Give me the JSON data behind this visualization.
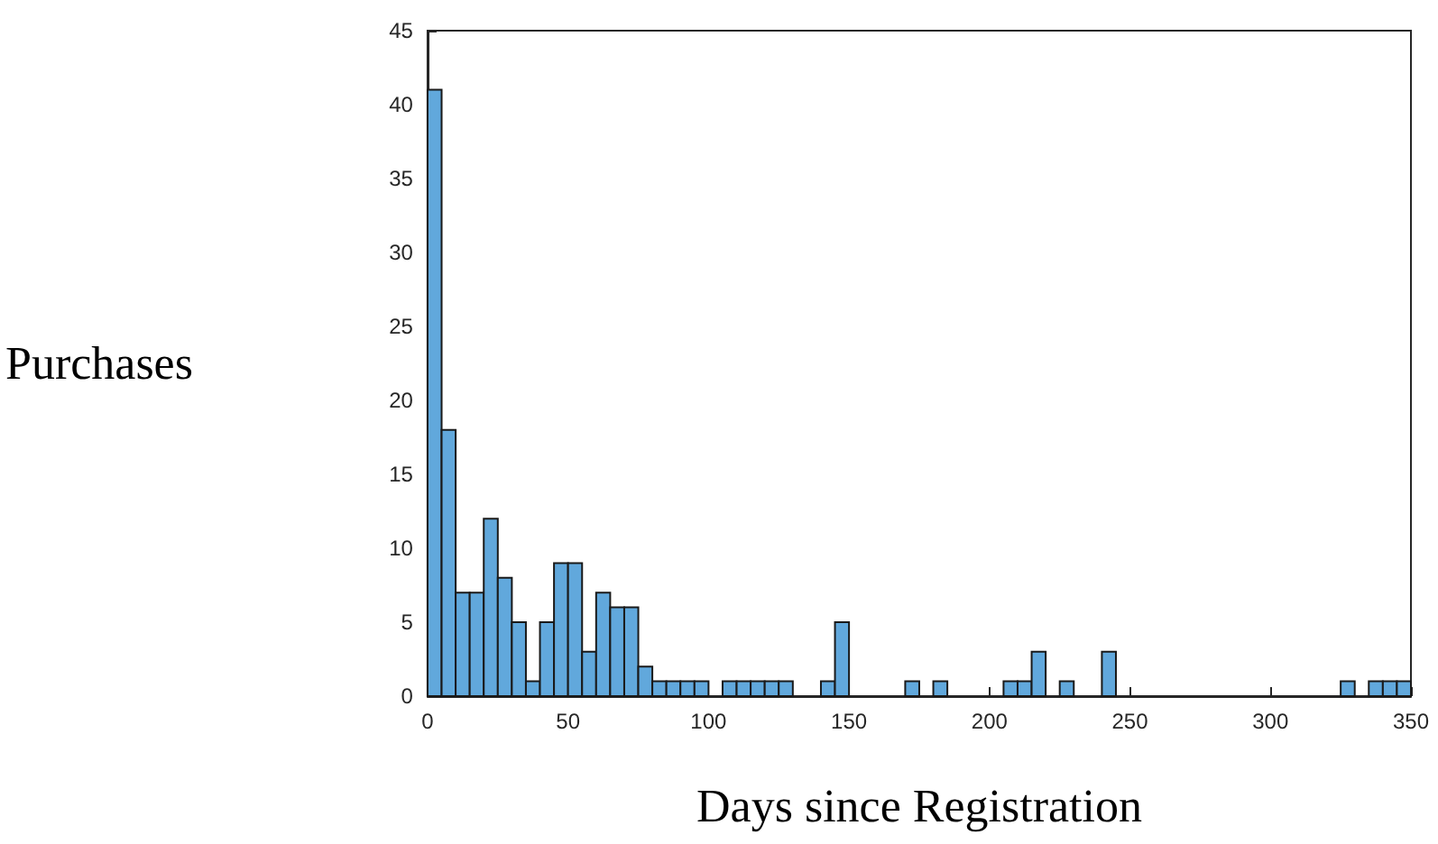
{
  "chart_data": {
    "type": "histogram",
    "xlabel": "Days since Registration",
    "ylabel": "Purchases",
    "color": "#61a8dc",
    "bins": [
      0,
      5,
      10,
      15,
      20,
      25,
      30,
      35,
      40,
      45,
      50,
      55,
      60,
      65,
      70,
      75,
      80,
      85,
      90,
      95,
      100,
      105,
      110,
      115,
      120,
      125,
      130,
      135,
      140,
      145,
      150,
      155,
      160,
      165,
      170,
      175,
      180,
      185,
      190,
      195,
      200,
      205,
      210,
      215,
      220,
      225,
      230,
      235,
      240,
      245,
      250,
      255,
      260,
      265,
      270,
      275,
      280,
      285,
      290,
      295,
      300,
      305,
      310,
      315,
      320,
      325,
      330,
      335,
      340,
      345,
      350
    ],
    "values": [
      41,
      18,
      7,
      7,
      12,
      8,
      5,
      1,
      5,
      9,
      9,
      3,
      7,
      6,
      6,
      2,
      1,
      1,
      1,
      1,
      0,
      1,
      1,
      1,
      1,
      1,
      0,
      0,
      1,
      5,
      0,
      0,
      0,
      0,
      1,
      0,
      1,
      0,
      0,
      0,
      0,
      1,
      1,
      3,
      0,
      1,
      0,
      0,
      3,
      0,
      0,
      0,
      0,
      0,
      0,
      0,
      0,
      0,
      0,
      0,
      0,
      0,
      0,
      0,
      0,
      1,
      0,
      1,
      1,
      1
    ],
    "xlim": [
      0,
      350
    ],
    "xticks": [
      0,
      50,
      100,
      150,
      200,
      250,
      300,
      350
    ],
    "ylim": [
      0,
      45
    ],
    "yticks": [
      0,
      5,
      10,
      15,
      20,
      25,
      30,
      35,
      40,
      45
    ],
    "grid": false
  }
}
